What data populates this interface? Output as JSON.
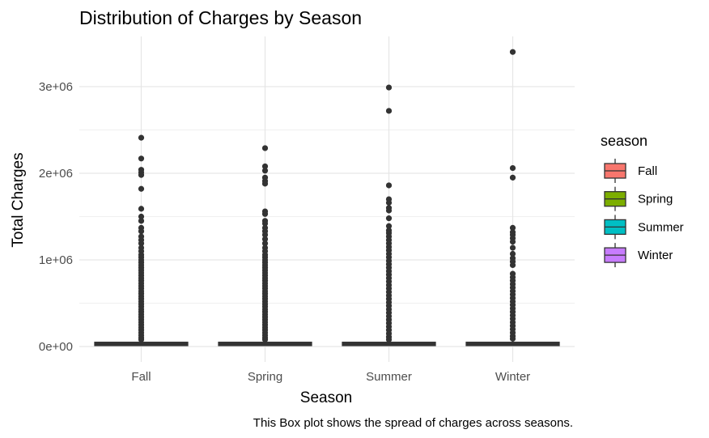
{
  "chart_data": {
    "type": "box",
    "title": "Distribution of Charges by Season",
    "xlabel": "Season",
    "ylabel": "Total Charges",
    "caption": "This Box plot shows the spread of charges across seasons.",
    "ylim": [
      -180000,
      3550000
    ],
    "yticks": [
      0,
      1000000,
      2000000,
      3000000
    ],
    "ytick_labels": [
      "0e+00",
      "1e+06",
      "2e+06",
      "3e+06"
    ],
    "categories": [
      "Fall",
      "Spring",
      "Summer",
      "Winter"
    ],
    "grid": true,
    "legend": {
      "title": "season",
      "position": "right",
      "entries": [
        "Fall",
        "Spring",
        "Summer",
        "Winter"
      ]
    },
    "series": [
      {
        "name": "Fall",
        "color": "#F8766D",
        "q1": 15000,
        "median": 30000,
        "q3": 45000,
        "outliers": [
          2410000,
          2170000,
          2040000,
          2010000,
          1980000,
          1820000,
          1590000,
          1500000,
          1450000,
          1370000,
          1330000,
          1270000,
          1230000,
          1190000,
          1140000,
          1100000,
          1060000,
          1030000,
          1000000,
          970000,
          940000,
          910000,
          880000,
          850000,
          820000,
          790000,
          760000,
          730000,
          700000,
          670000,
          640000,
          610000,
          580000,
          550000,
          520000,
          490000,
          460000,
          430000,
          400000,
          370000,
          340000,
          310000,
          280000,
          250000,
          220000,
          190000,
          160000,
          130000,
          100000,
          80000
        ]
      },
      {
        "name": "Spring",
        "color": "#7CAE00",
        "q1": 15000,
        "median": 30000,
        "q3": 45000,
        "outliers": [
          2290000,
          2080000,
          2030000,
          1950000,
          1910000,
          1880000,
          1560000,
          1530000,
          1450000,
          1420000,
          1370000,
          1330000,
          1290000,
          1240000,
          1190000,
          1140000,
          1100000,
          1060000,
          1030000,
          1000000,
          970000,
          940000,
          910000,
          880000,
          850000,
          820000,
          790000,
          760000,
          730000,
          700000,
          670000,
          640000,
          610000,
          580000,
          550000,
          520000,
          490000,
          460000,
          430000,
          400000,
          370000,
          340000,
          310000,
          280000,
          250000,
          220000,
          190000,
          160000,
          130000,
          100000,
          80000
        ]
      },
      {
        "name": "Summer",
        "color": "#00BFC4",
        "q1": 15000,
        "median": 30000,
        "q3": 45000,
        "outliers": [
          2990000,
          2720000,
          1860000,
          1700000,
          1660000,
          1600000,
          1570000,
          1480000,
          1390000,
          1340000,
          1310000,
          1270000,
          1230000,
          1190000,
          1150000,
          1110000,
          1070000,
          1030000,
          990000,
          950000,
          910000,
          870000,
          830000,
          790000,
          750000,
          710000,
          670000,
          630000,
          590000,
          550000,
          510000,
          470000,
          430000,
          390000,
          350000,
          310000,
          270000,
          230000,
          190000,
          150000,
          110000,
          80000
        ]
      },
      {
        "name": "Winter",
        "color": "#C77CFF",
        "q1": 15000,
        "median": 30000,
        "q3": 45000,
        "outliers": [
          3400000,
          2060000,
          1950000,
          1370000,
          1320000,
          1290000,
          1250000,
          1210000,
          1140000,
          1070000,
          1020000,
          980000,
          940000,
          840000,
          800000,
          760000,
          720000,
          680000,
          640000,
          600000,
          560000,
          520000,
          480000,
          440000,
          400000,
          360000,
          320000,
          280000,
          240000,
          200000,
          160000,
          120000,
          90000
        ]
      }
    ]
  }
}
